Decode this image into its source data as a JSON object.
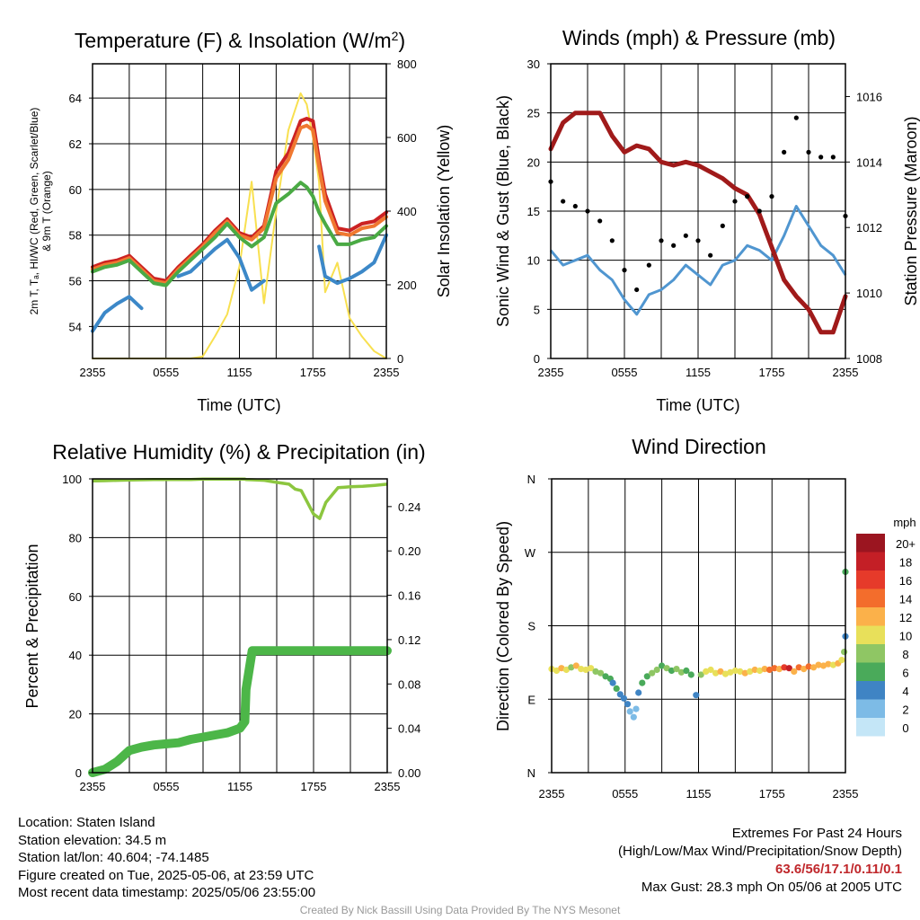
{
  "charts": {
    "temperature": {
      "title_main": "Temperature (F) & Insolation (W/m",
      "title_sup": "2",
      "title_end": ")",
      "ylabel_line1": "2m T, Tₐ, HI/WC (Red, Green, Scarlet/Blue)",
      "ylabel_line2": "& 9m T (Orange)",
      "y2label": "Solar Insolation (Yellow)",
      "xlabel": "Time (UTC)",
      "xticks": [
        "2355",
        "0555",
        "1155",
        "1755",
        "2355"
      ],
      "yticks": [
        "54",
        "56",
        "58",
        "60",
        "62",
        "64"
      ],
      "y2ticks": [
        "0",
        "200",
        "400",
        "600",
        "800"
      ]
    },
    "winds": {
      "title": "Winds (mph) & Pressure (mb)",
      "ylabel": "Sonic Wind & Gust (Blue, Black)",
      "y2label": "Station Pressure (Maroon)",
      "xlabel": "Time (UTC)",
      "xticks": [
        "2355",
        "0555",
        "1155",
        "1755",
        "2355"
      ],
      "yticks": [
        "0",
        "5",
        "10",
        "15",
        "20",
        "25",
        "30"
      ],
      "y2ticks": [
        "1008",
        "1010",
        "1012",
        "1014",
        "1016"
      ]
    },
    "humidity": {
      "title": "Relative Humidity (%) & Precipitation (in)",
      "ylabel": "Percent & Precipitation",
      "xticks": [
        "2355",
        "0555",
        "1155",
        "1755",
        "2355"
      ],
      "yticks": [
        "0",
        "20",
        "40",
        "60",
        "80",
        "100"
      ],
      "y2ticks": [
        "0.00",
        "0.04",
        "0.08",
        "0.12",
        "0.16",
        "0.20",
        "0.24"
      ]
    },
    "direction": {
      "title": "Wind Direction",
      "ylabel": "Direction (Colored By Speed)",
      "xticks": [
        "2355",
        "0555",
        "1155",
        "1755",
        "2355"
      ],
      "yticks": [
        "N",
        "E",
        "S",
        "W",
        "N"
      ],
      "legend_title": "mph",
      "legend_labels": [
        "20+",
        "18",
        "16",
        "14",
        "12",
        "10",
        "8",
        "6",
        "4",
        "2",
        "0"
      ]
    }
  },
  "colors": {
    "temp_red": "#cc2222",
    "dewpoint_green": "#4aaa44",
    "orange_9m": "#f07830",
    "hiwc_blue": "#3c88c8",
    "insolation_yellow": "#f8e050",
    "wind_blue": "#5096d0",
    "gust_black": "#000000",
    "pressure_maroon": "#a01a1a",
    "rh_lightgreen": "#8cc63f",
    "precip_green": "#4cb648",
    "speed_scale": [
      "#c4e6f7",
      "#7dbbe6",
      "#3f84c4",
      "#4aaa5a",
      "#8fc664",
      "#e8e05a",
      "#fbb14a",
      "#f36d2c",
      "#e63a2a",
      "#c41f26",
      "#9b1520"
    ]
  },
  "chart_data": [
    {
      "type": "line",
      "title": "Temperature (F) & Insolation (W/m2)",
      "xlabel": "Time (UTC)",
      "ylabel": "2m T, Td, HI/WC (Red, Green, Scarlet/Blue) & 9m T (Orange)",
      "y2label": "Solar Insolation (Yellow)",
      "x_hours": [
        0,
        1,
        2,
        3,
        4,
        5,
        6,
        7,
        8,
        9,
        10,
        11,
        12,
        13,
        14,
        15,
        16,
        17,
        17.5,
        18,
        18.5,
        19,
        20,
        21,
        22,
        23,
        24
      ],
      "ylim": [
        52.6,
        65.5
      ],
      "y2lim": [
        0,
        800
      ],
      "series": [
        {
          "name": "2m T",
          "axis": "left",
          "values": [
            56.6,
            56.8,
            56.9,
            57.1,
            56.6,
            56.1,
            56.0,
            56.6,
            57.1,
            57.6,
            58.2,
            58.7,
            58.1,
            57.9,
            58.4,
            60.8,
            61.6,
            63.0,
            63.1,
            63.0,
            61.3,
            59.8,
            58.3,
            58.2,
            58.5,
            58.6,
            59.0
          ]
        },
        {
          "name": "9m T",
          "axis": "left",
          "values": [
            56.5,
            56.7,
            56.8,
            57.0,
            56.5,
            56.0,
            55.9,
            56.5,
            57.0,
            57.5,
            58.1,
            58.6,
            58.0,
            57.8,
            58.3,
            60.5,
            61.3,
            62.7,
            62.8,
            62.6,
            61.0,
            59.5,
            58.1,
            58.0,
            58.3,
            58.4,
            58.8
          ]
        },
        {
          "name": "Td",
          "axis": "left",
          "values": [
            56.4,
            56.6,
            56.7,
            56.9,
            56.4,
            55.9,
            55.8,
            56.4,
            56.9,
            57.4,
            57.9,
            58.5,
            57.9,
            57.5,
            57.9,
            59.4,
            59.8,
            60.3,
            60.1,
            59.7,
            59.0,
            58.5,
            57.6,
            57.6,
            57.8,
            57.9,
            58.4
          ]
        },
        {
          "name": "HI/WC",
          "axis": "left",
          "values": [
            53.8,
            54.6,
            55.0,
            55.3,
            54.8,
            null,
            null,
            56.2,
            56.4,
            56.9,
            57.4,
            57.8,
            57.0,
            55.6,
            56.0,
            null,
            null,
            null,
            null,
            null,
            57.5,
            56.2,
            55.9,
            56.1,
            56.4,
            56.8,
            58.0
          ]
        },
        {
          "name": "Solar Insolation",
          "axis": "right",
          "values": [
            0,
            0,
            0,
            0,
            0,
            0,
            0,
            0,
            0,
            5,
            60,
            120,
            250,
            480,
            150,
            400,
            620,
            720,
            690,
            600,
            480,
            180,
            260,
            110,
            60,
            20,
            0
          ]
        }
      ]
    },
    {
      "type": "line",
      "title": "Winds (mph) & Pressure (mb)",
      "xlabel": "Time (UTC)",
      "ylabel": "Sonic Wind & Gust (Blue, Black)",
      "y2label": "Station Pressure (Maroon)",
      "x_hours": [
        0,
        1,
        2,
        3,
        4,
        5,
        6,
        7,
        8,
        9,
        10,
        11,
        12,
        13,
        14,
        15,
        16,
        17,
        18,
        19,
        20,
        21,
        22,
        23,
        24
      ],
      "ylim": [
        0,
        30
      ],
      "y2lim": [
        1008,
        1017
      ],
      "series": [
        {
          "name": "Sonic Wind",
          "axis": "left",
          "values": [
            11,
            9.5,
            10,
            10.5,
            9,
            8,
            6,
            4.5,
            6.5,
            7,
            8,
            9.5,
            8.5,
            7.5,
            9.5,
            10,
            11.5,
            11,
            10,
            12.5,
            15.5,
            13.5,
            11.5,
            10.5,
            8.5
          ]
        },
        {
          "name": "Gust",
          "axis": "left",
          "values": [
            18,
            16,
            15.5,
            15,
            14,
            12,
            9,
            7,
            9.5,
            12,
            11.5,
            12.5,
            12,
            10.5,
            13.5,
            16,
            16.5,
            15,
            16.5,
            21,
            24.5,
            21,
            20.5,
            20.5,
            14.5
          ]
        },
        {
          "name": "Station Pressure",
          "axis": "right",
          "values": [
            1014.4,
            1015.2,
            1015.5,
            1015.5,
            1015.5,
            1014.8,
            1014.3,
            1014.5,
            1014.4,
            1014.0,
            1013.9,
            1014.0,
            1013.9,
            1013.7,
            1013.5,
            1013.2,
            1013.0,
            1012.4,
            1011.4,
            1010.4,
            1009.9,
            1009.5,
            1008.8,
            1008.8,
            1009.9
          ]
        }
      ]
    },
    {
      "type": "line",
      "title": "Relative Humidity (%) & Precipitation (in)",
      "ylabel": "Percent & Precipitation",
      "x_hours": [
        0,
        1,
        2,
        3,
        4,
        5,
        6,
        7,
        8,
        9,
        10,
        11,
        12,
        12.4,
        12.5,
        13,
        14,
        15,
        16,
        16.5,
        17,
        17.5,
        18,
        18.5,
        19,
        20,
        21,
        22,
        23,
        24
      ],
      "ylim": [
        0,
        100
      ],
      "y2lim": [
        0,
        0.265
      ],
      "series": [
        {
          "name": "Relative Humidity",
          "axis": "left",
          "values": [
            99.3,
            99.4,
            99.5,
            99.6,
            99.7,
            99.8,
            99.8,
            99.8,
            99.8,
            99.9,
            99.9,
            99.9,
            99.9,
            99.9,
            99.8,
            99.7,
            99.5,
            98.8,
            98.2,
            96.5,
            96.0,
            92.0,
            88.0,
            86.5,
            92.0,
            97.0,
            97.3,
            97.5,
            97.8,
            98.2
          ]
        },
        {
          "name": "Precipitation",
          "axis": "right",
          "values": [
            0.0,
            0.003,
            0.01,
            0.02,
            0.023,
            0.025,
            0.026,
            0.027,
            0.03,
            0.032,
            0.034,
            0.036,
            0.04,
            0.046,
            0.075,
            0.11,
            0.11,
            0.11,
            0.11,
            0.11,
            0.11,
            0.11,
            0.11,
            0.11,
            0.11,
            0.11,
            0.11,
            0.11,
            0.11,
            0.11
          ]
        }
      ]
    },
    {
      "type": "scatter",
      "title": "Wind Direction",
      "ylabel": "Direction (Colored By Speed)",
      "y_labels": [
        "N",
        "E",
        "S",
        "W",
        "N"
      ],
      "ylim": [
        0,
        360
      ],
      "points": [
        {
          "x": 0.0,
          "dir": 127,
          "speed": 10
        },
        {
          "x": 0.4,
          "dir": 125,
          "speed": 9
        },
        {
          "x": 0.8,
          "dir": 128,
          "speed": 11
        },
        {
          "x": 1.2,
          "dir": 126,
          "speed": 10
        },
        {
          "x": 1.6,
          "dir": 129,
          "speed": 8
        },
        {
          "x": 2.0,
          "dir": 131,
          "speed": 12
        },
        {
          "x": 2.4,
          "dir": 127,
          "speed": 10
        },
        {
          "x": 2.8,
          "dir": 126,
          "speed": 9
        },
        {
          "x": 3.2,
          "dir": 128,
          "speed": 10
        },
        {
          "x": 3.6,
          "dir": 124,
          "speed": 7
        },
        {
          "x": 4.0,
          "dir": 122,
          "speed": 8
        },
        {
          "x": 4.4,
          "dir": 118,
          "speed": 6
        },
        {
          "x": 4.8,
          "dir": 115,
          "speed": 5
        },
        {
          "x": 5.0,
          "dir": 110,
          "speed": 4
        },
        {
          "x": 5.3,
          "dir": 103,
          "speed": 5
        },
        {
          "x": 5.6,
          "dir": 96,
          "speed": 4
        },
        {
          "x": 5.9,
          "dir": 91,
          "speed": 3
        },
        {
          "x": 6.2,
          "dir": 84,
          "speed": 3
        },
        {
          "x": 6.4,
          "dir": 75,
          "speed": 2
        },
        {
          "x": 6.7,
          "dir": 68,
          "speed": 2
        },
        {
          "x": 6.9,
          "dir": 78,
          "speed": 2
        },
        {
          "x": 7.1,
          "dir": 98,
          "speed": 4
        },
        {
          "x": 7.4,
          "dir": 110,
          "speed": 5
        },
        {
          "x": 7.8,
          "dir": 118,
          "speed": 6
        },
        {
          "x": 8.2,
          "dir": 122,
          "speed": 8
        },
        {
          "x": 8.6,
          "dir": 126,
          "speed": 7
        },
        {
          "x": 9.0,
          "dir": 131,
          "speed": 6
        },
        {
          "x": 9.4,
          "dir": 128,
          "speed": 7
        },
        {
          "x": 9.8,
          "dir": 125,
          "speed": 6
        },
        {
          "x": 10.2,
          "dir": 127,
          "speed": 8
        },
        {
          "x": 10.6,
          "dir": 123,
          "speed": 7
        },
        {
          "x": 11.0,
          "dir": 125,
          "speed": 6
        },
        {
          "x": 11.4,
          "dir": 120,
          "speed": 5
        },
        {
          "x": 11.8,
          "dir": 95,
          "speed": 4
        },
        {
          "x": 12.2,
          "dir": 120,
          "speed": 8
        },
        {
          "x": 12.6,
          "dir": 124,
          "speed": 10
        },
        {
          "x": 13.0,
          "dir": 126,
          "speed": 9
        },
        {
          "x": 13.4,
          "dir": 122,
          "speed": 10
        },
        {
          "x": 13.8,
          "dir": 124,
          "speed": 11
        },
        {
          "x": 14.2,
          "dir": 121,
          "speed": 9
        },
        {
          "x": 14.6,
          "dir": 123,
          "speed": 10
        },
        {
          "x": 15.0,
          "dir": 125,
          "speed": 9
        },
        {
          "x": 15.4,
          "dir": 124,
          "speed": 10
        },
        {
          "x": 15.8,
          "dir": 122,
          "speed": 12
        },
        {
          "x": 16.2,
          "dir": 124,
          "speed": 10
        },
        {
          "x": 16.6,
          "dir": 126,
          "speed": 11
        },
        {
          "x": 17.0,
          "dir": 125,
          "speed": 9
        },
        {
          "x": 17.4,
          "dir": 127,
          "speed": 12
        },
        {
          "x": 17.8,
          "dir": 126,
          "speed": 13
        },
        {
          "x": 18.2,
          "dir": 128,
          "speed": 14
        },
        {
          "x": 18.6,
          "dir": 127,
          "speed": 12
        },
        {
          "x": 19.0,
          "dir": 129,
          "speed": 15
        },
        {
          "x": 19.4,
          "dir": 128,
          "speed": 17
        },
        {
          "x": 19.8,
          "dir": 124,
          "speed": 12
        },
        {
          "x": 20.2,
          "dir": 129,
          "speed": 14
        },
        {
          "x": 20.6,
          "dir": 127,
          "speed": 12
        },
        {
          "x": 21.0,
          "dir": 130,
          "speed": 13
        },
        {
          "x": 21.4,
          "dir": 129,
          "speed": 12
        },
        {
          "x": 21.8,
          "dir": 132,
          "speed": 11
        },
        {
          "x": 22.2,
          "dir": 131,
          "speed": 12
        },
        {
          "x": 22.6,
          "dir": 133,
          "speed": 11
        },
        {
          "x": 23.0,
          "dir": 132,
          "speed": 10
        },
        {
          "x": 23.4,
          "dir": 134,
          "speed": 11
        },
        {
          "x": 23.7,
          "dir": 138,
          "speed": 9
        },
        {
          "x": 23.9,
          "dir": 148,
          "speed": 7
        },
        {
          "x": 24.0,
          "dir": 167,
          "speed": 4
        },
        {
          "x": 24.0,
          "dir": 246,
          "speed": 6
        }
      ]
    }
  ],
  "footer": {
    "location": "Location: Staten Island",
    "elevation": "Station elevation: 34.5 m",
    "latlon": "Station lat/lon: 40.604; -74.1485",
    "created": "Figure created on Tue, 2025-05-06, at 23:59 UTC",
    "recent": "Most recent data timestamp: 2025/05/06 23:55:00",
    "extremes_title": "Extremes For Past 24 Hours",
    "extremes_desc": "(High/Low/Max Wind/Precipitation/Snow Depth)",
    "extremes_values": "63.6/56/17.1/0.11/0.1",
    "max_gust": "Max Gust: 28.3 mph On 05/06 at 2005 UTC",
    "credit": "Created By Nick Bassill Using Data Provided By The NYS Mesonet"
  }
}
